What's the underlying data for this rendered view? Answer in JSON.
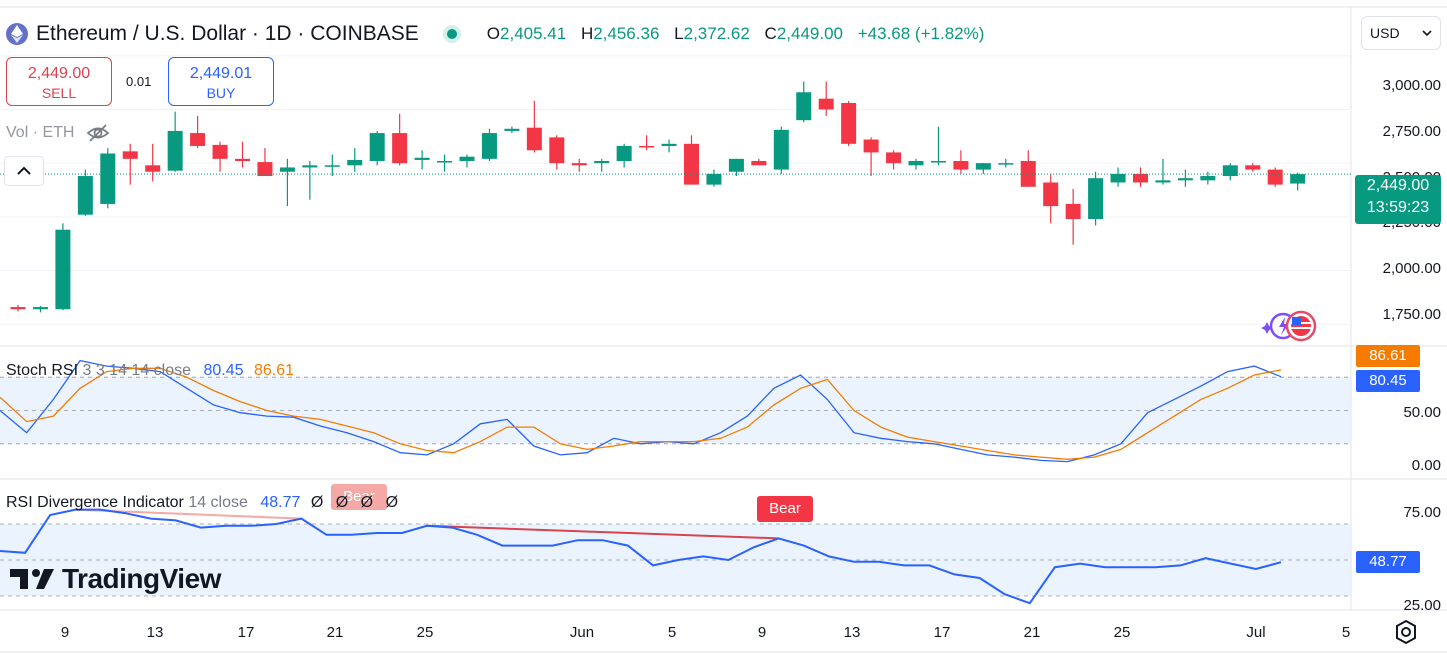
{
  "header": {
    "symbol": "Ethereum / U.S. Dollar · 1D · COINBASE",
    "o_label": "O",
    "o": "2,405.41",
    "h_label": "H",
    "h": "2,456.36",
    "l_label": "L",
    "l": "2,372.62",
    "c_label": "C",
    "c": "2,449.00",
    "change": "+43.68 (+1.82%)"
  },
  "trade": {
    "sell_price": "2,449.00",
    "sell_label": "SELL",
    "spread": "0.01",
    "buy_price": "2,449.01",
    "buy_label": "BUY"
  },
  "volume_label": "Vol · ETH",
  "currency": "USD",
  "price_axis": [
    "3,000.00",
    "2,750.00",
    "2,500.00",
    "2,250.00",
    "2,000.00",
    "1,750.00"
  ],
  "last_price": {
    "price": "2,449.00",
    "countdown": "13:59:23"
  },
  "stoch": {
    "title": "Stoch RSI",
    "params": "3 3 14 14 close",
    "k": "80.45",
    "d": "86.61",
    "axis": [
      "50.00",
      "0.00"
    ]
  },
  "rsi": {
    "title": "RSI Divergence Indicator",
    "params": "14 close",
    "value": "48.77",
    "na": [
      "Ø",
      "Ø",
      "Ø",
      "Ø"
    ],
    "axis": [
      "75.00",
      "25.00"
    ],
    "bear_label": "Bear"
  },
  "branding": "TradingView",
  "x_axis": [
    "9",
    "13",
    "17",
    "21",
    "25",
    "Jun",
    "5",
    "9",
    "13",
    "17",
    "21",
    "25",
    "Jul",
    "5"
  ],
  "colors": {
    "up": "#089981",
    "down": "#f23645",
    "k_line": "#2962ff",
    "d_line": "#f57c00",
    "band": "#e3effd"
  },
  "chart_data": [
    {
      "type": "candlestick",
      "title": "Ethereum / U.S. Dollar · 1D · COINBASE",
      "ylim": [
        1700,
        3050
      ],
      "y_ticks": [
        1750,
        2000,
        2250,
        2500,
        2750,
        3000
      ],
      "last_price": 2449.0,
      "candles": [
        {
          "o": 1830,
          "h": 1840,
          "l": 1810,
          "c": 1820
        },
        {
          "o": 1820,
          "h": 1835,
          "l": 1805,
          "c": 1830
        },
        {
          "o": 1820,
          "h": 2220,
          "l": 1815,
          "c": 2190
        },
        {
          "o": 2260,
          "h": 2470,
          "l": 2255,
          "c": 2440
        },
        {
          "o": 2310,
          "h": 2570,
          "l": 2290,
          "c": 2545
        },
        {
          "o": 2555,
          "h": 2590,
          "l": 2400,
          "c": 2520
        },
        {
          "o": 2490,
          "h": 2590,
          "l": 2415,
          "c": 2460
        },
        {
          "o": 2465,
          "h": 2740,
          "l": 2460,
          "c": 2650
        },
        {
          "o": 2640,
          "h": 2720,
          "l": 2570,
          "c": 2580
        },
        {
          "o": 2585,
          "h": 2600,
          "l": 2460,
          "c": 2520
        },
        {
          "o": 2520,
          "h": 2600,
          "l": 2480,
          "c": 2510
        },
        {
          "o": 2505,
          "h": 2570,
          "l": 2440,
          "c": 2440
        },
        {
          "o": 2460,
          "h": 2520,
          "l": 2300,
          "c": 2480
        },
        {
          "o": 2480,
          "h": 2510,
          "l": 2330,
          "c": 2490
        },
        {
          "o": 2490,
          "h": 2540,
          "l": 2440,
          "c": 2490
        },
        {
          "o": 2490,
          "h": 2570,
          "l": 2460,
          "c": 2515
        },
        {
          "o": 2510,
          "h": 2650,
          "l": 2490,
          "c": 2640
        },
        {
          "o": 2640,
          "h": 2730,
          "l": 2490,
          "c": 2500
        },
        {
          "o": 2515,
          "h": 2560,
          "l": 2470,
          "c": 2525
        },
        {
          "o": 2510,
          "h": 2540,
          "l": 2460,
          "c": 2510
        },
        {
          "o": 2510,
          "h": 2540,
          "l": 2480,
          "c": 2530
        },
        {
          "o": 2520,
          "h": 2660,
          "l": 2510,
          "c": 2640
        },
        {
          "o": 2650,
          "h": 2670,
          "l": 2640,
          "c": 2660
        },
        {
          "o": 2665,
          "h": 2790,
          "l": 2550,
          "c": 2560
        },
        {
          "o": 2620,
          "h": 2630,
          "l": 2470,
          "c": 2500
        },
        {
          "o": 2500,
          "h": 2520,
          "l": 2460,
          "c": 2490
        },
        {
          "o": 2500,
          "h": 2520,
          "l": 2460,
          "c": 2510
        },
        {
          "o": 2510,
          "h": 2590,
          "l": 2480,
          "c": 2580
        },
        {
          "o": 2580,
          "h": 2630,
          "l": 2560,
          "c": 2575
        },
        {
          "o": 2580,
          "h": 2610,
          "l": 2550,
          "c": 2590
        },
        {
          "o": 2590,
          "h": 2630,
          "l": 2400,
          "c": 2400
        },
        {
          "o": 2400,
          "h": 2470,
          "l": 2390,
          "c": 2450
        },
        {
          "o": 2460,
          "h": 2520,
          "l": 2440,
          "c": 2520
        },
        {
          "o": 2510,
          "h": 2520,
          "l": 2490,
          "c": 2490
        },
        {
          "o": 2470,
          "h": 2670,
          "l": 2450,
          "c": 2655
        },
        {
          "o": 2700,
          "h": 2880,
          "l": 2690,
          "c": 2830
        },
        {
          "o": 2800,
          "h": 2880,
          "l": 2720,
          "c": 2750
        },
        {
          "o": 2780,
          "h": 2790,
          "l": 2580,
          "c": 2590
        },
        {
          "o": 2610,
          "h": 2620,
          "l": 2440,
          "c": 2550
        },
        {
          "o": 2550,
          "h": 2560,
          "l": 2470,
          "c": 2500
        },
        {
          "o": 2490,
          "h": 2520,
          "l": 2470,
          "c": 2510
        },
        {
          "o": 2510,
          "h": 2670,
          "l": 2490,
          "c": 2510
        },
        {
          "o": 2510,
          "h": 2560,
          "l": 2450,
          "c": 2470
        },
        {
          "o": 2470,
          "h": 2500,
          "l": 2450,
          "c": 2500
        },
        {
          "o": 2500,
          "h": 2520,
          "l": 2480,
          "c": 2500
        },
        {
          "o": 2510,
          "h": 2560,
          "l": 2390,
          "c": 2390
        },
        {
          "o": 2410,
          "h": 2450,
          "l": 2220,
          "c": 2300
        },
        {
          "o": 2310,
          "h": 2380,
          "l": 2120,
          "c": 2240
        },
        {
          "o": 2240,
          "h": 2460,
          "l": 2210,
          "c": 2430
        },
        {
          "o": 2410,
          "h": 2480,
          "l": 2390,
          "c": 2450
        },
        {
          "o": 2450,
          "h": 2480,
          "l": 2390,
          "c": 2410
        },
        {
          "o": 2410,
          "h": 2520,
          "l": 2400,
          "c": 2420
        },
        {
          "o": 2420,
          "h": 2470,
          "l": 2390,
          "c": 2430
        },
        {
          "o": 2420,
          "h": 2460,
          "l": 2400,
          "c": 2440
        },
        {
          "o": 2440,
          "h": 2500,
          "l": 2420,
          "c": 2490
        },
        {
          "o": 2490,
          "h": 2500,
          "l": 2460,
          "c": 2470
        },
        {
          "o": 2470,
          "h": 2480,
          "l": 2390,
          "c": 2400
        },
        {
          "o": 2405,
          "h": 2456,
          "l": 2373,
          "c": 2449
        }
      ]
    },
    {
      "type": "line",
      "title": "Stoch RSI 3 3 14 14 close",
      "ylim": [
        0,
        100
      ],
      "bands": [
        80,
        50,
        20
      ],
      "series": [
        {
          "name": "K",
          "values": [
            50,
            30,
            60,
            95,
            90,
            88,
            85,
            70,
            55,
            48,
            45,
            44,
            36,
            30,
            22,
            12,
            10,
            20,
            38,
            42,
            18,
            10,
            12,
            25,
            20,
            22,
            20,
            30,
            45,
            70,
            82,
            60,
            30,
            25,
            22,
            20,
            15,
            10,
            8,
            5,
            4,
            10,
            20,
            48,
            60,
            72,
            85,
            90,
            80.45
          ]
        },
        {
          "name": "D",
          "values": [
            62,
            40,
            45,
            70,
            85,
            88,
            88,
            80,
            68,
            58,
            50,
            45,
            42,
            36,
            30,
            20,
            14,
            12,
            22,
            35,
            35,
            20,
            15,
            18,
            22,
            22,
            22,
            25,
            35,
            55,
            70,
            78,
            50,
            35,
            26,
            22,
            18,
            14,
            10,
            8,
            6,
            8,
            15,
            30,
            45,
            60,
            70,
            82,
            86.61
          ]
        }
      ]
    },
    {
      "type": "line",
      "title": "RSI Divergence Indicator 14 close",
      "ylim": [
        25,
        90
      ],
      "bands": [
        70,
        50,
        30
      ],
      "series": [
        {
          "name": "RSI",
          "values": [
            55,
            54,
            75,
            78,
            78,
            76,
            73,
            72,
            68,
            69,
            69,
            70,
            73,
            64,
            64,
            65,
            65,
            69,
            68,
            64,
            58,
            58,
            58,
            61,
            61,
            58,
            47,
            50,
            52,
            50,
            57,
            62,
            58,
            52,
            49,
            49,
            47,
            47,
            42,
            40,
            31,
            26,
            46,
            48,
            46,
            46,
            46,
            47,
            51,
            48,
            45,
            48.77
          ]
        }
      ]
    }
  ]
}
